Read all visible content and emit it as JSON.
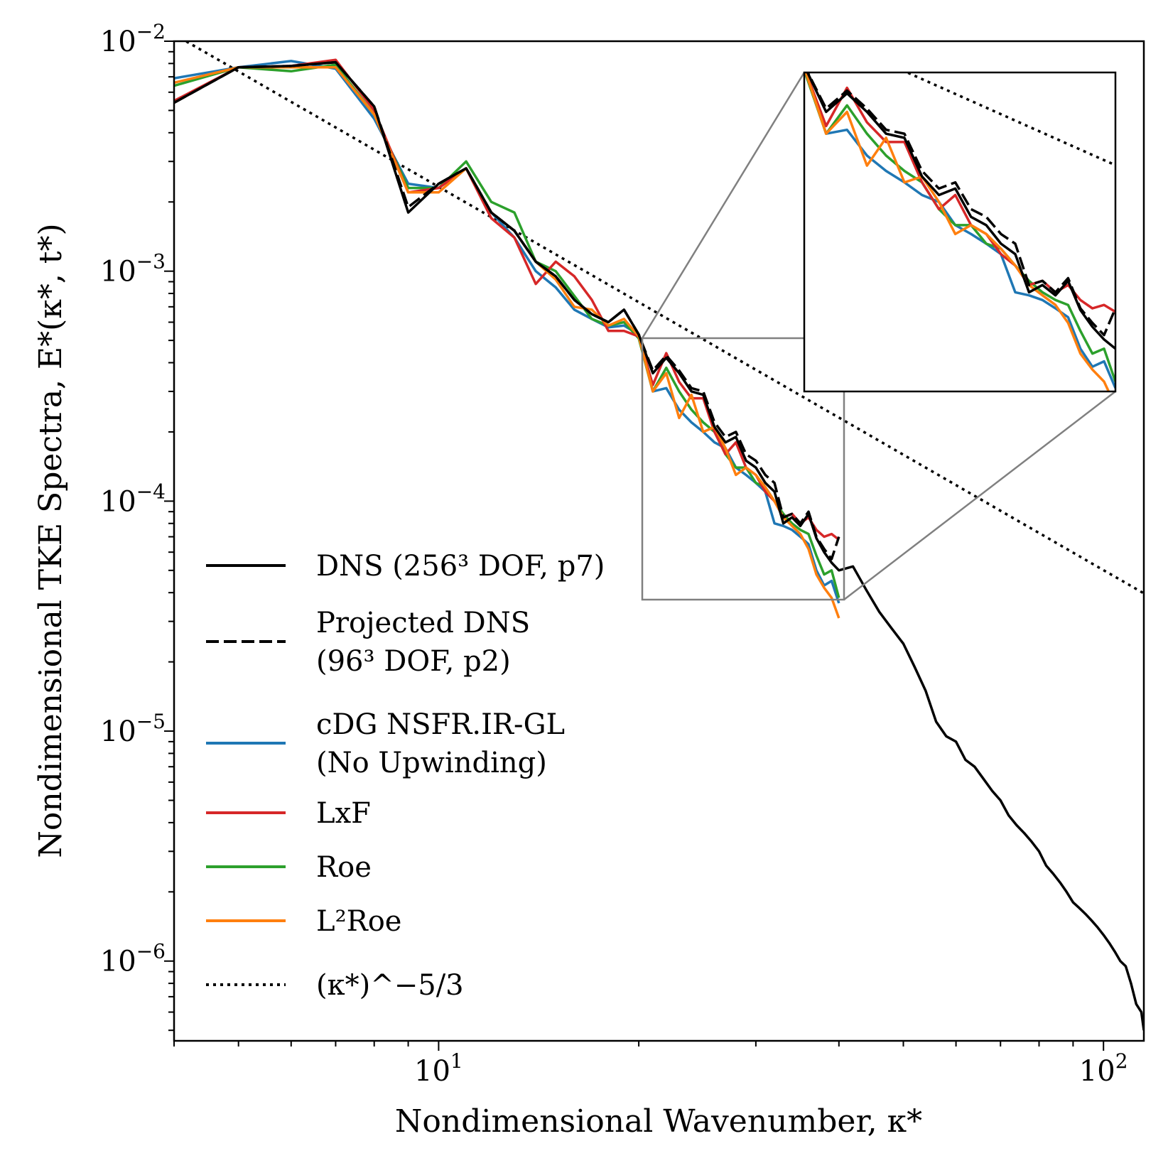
{
  "chart_data": {
    "type": "line",
    "xscale": "log",
    "yscale": "log",
    "xlim": [
      4.0,
      115.0
    ],
    "ylim": [
      4.5e-07,
      0.01
    ],
    "xlabel": "Nondimensional Wavenumber, κ*",
    "ylabel": "Nondimensional TKE Spectra, E*(κ*, t*)",
    "x_ticks": [
      {
        "value": 10,
        "base": "10",
        "exp": "1"
      },
      {
        "value": 100,
        "base": "10",
        "exp": "2"
      }
    ],
    "y_ticks": [
      {
        "value": 0.01,
        "base": "10",
        "exp": "−2"
      },
      {
        "value": 0.001,
        "base": "10",
        "exp": "−3"
      },
      {
        "value": 0.0001,
        "base": "10",
        "exp": "−4"
      },
      {
        "value": 1e-05,
        "base": "10",
        "exp": "−5"
      },
      {
        "value": 1e-06,
        "base": "10",
        "exp": "−6"
      }
    ],
    "legend": [
      {
        "key": "dns",
        "lines": [
          "DNS (256³ DOF, p7)"
        ]
      },
      {
        "key": "proj",
        "lines": [
          "Projected DNS",
          "(96³ DOF, p2)"
        ]
      },
      {
        "key": "nsfr",
        "lines": [
          "cDG NSFR.IR-GL",
          "(No Upwinding)"
        ]
      },
      {
        "key": "lxf",
        "lines": [
          "LxF"
        ]
      },
      {
        "key": "roe",
        "lines": [
          "Roe"
        ]
      },
      {
        "key": "l2roe",
        "lines": [
          "L²Roe"
        ]
      },
      {
        "key": "ref",
        "lines": [
          "(κ*)^−5/3"
        ]
      }
    ],
    "series": [
      {
        "name": "DNS (256³ DOF, p7)",
        "key": "dns",
        "color": "#000000",
        "dash": "solid",
        "x": [
          4,
          5,
          6,
          7,
          8,
          9,
          10,
          11,
          12,
          13,
          14,
          15,
          16,
          17,
          18,
          19,
          20,
          21,
          22,
          23,
          24,
          25,
          26,
          27,
          28,
          29,
          30,
          31,
          32,
          33,
          34,
          35,
          36,
          37,
          38,
          39,
          40,
          42,
          44,
          46,
          48,
          50,
          52,
          54,
          56,
          58,
          60,
          62,
          64,
          66,
          68,
          70,
          72,
          74,
          76,
          78,
          80,
          82,
          84,
          86,
          88,
          90,
          92,
          94,
          96,
          98,
          100,
          102,
          104,
          106,
          108,
          110,
          112,
          114,
          115
        ],
        "values": [
          0.0054,
          0.0077,
          0.0078,
          0.0081,
          0.0052,
          0.0018,
          0.0024,
          0.0028,
          0.0018,
          0.0015,
          0.0011,
          0.00095,
          0.00075,
          0.00065,
          0.0006,
          0.00068,
          0.00053,
          0.00036,
          0.00042,
          0.00036,
          0.0003,
          0.00029,
          0.00021,
          0.00018,
          0.00019,
          0.00015,
          0.00014,
          0.00012,
          0.00011,
          8e-05,
          8.5e-05,
          7.8e-05,
          8.8e-05,
          6.9e-05,
          6e-05,
          5.4e-05,
          5e-05,
          5.2e-05,
          4.1e-05,
          3.3e-05,
          2.8e-05,
          2.4e-05,
          1.9e-05,
          1.5e-05,
          1.1e-05,
          9.5e-06,
          9e-06,
          7.5e-06,
          7e-06,
          6.2e-06,
          5.5e-06,
          5e-06,
          4.3e-06,
          3.9e-06,
          3.6e-06,
          3.3e-06,
          3e-06,
          2.6e-06,
          2.4e-06,
          2.2e-06,
          2e-06,
          1.8e-06,
          1.7e-06,
          1.6e-06,
          1.5e-06,
          1.4e-06,
          1.3e-06,
          1.2e-06,
          1.1e-06,
          1e-06,
          9.5e-07,
          8e-07,
          6.5e-07,
          6e-07,
          5e-07
        ]
      },
      {
        "name": "Projected DNS (96³ DOF, p2)",
        "key": "proj",
        "color": "#000000",
        "dash": "dashed",
        "x": [
          4,
          5,
          6,
          7,
          8,
          9,
          10,
          11,
          12,
          13,
          14,
          15,
          16,
          17,
          18,
          19,
          20,
          21,
          22,
          23,
          24,
          25,
          26,
          27,
          28,
          29,
          30,
          31,
          32,
          33,
          34,
          35,
          36,
          37,
          38,
          39,
          40
        ],
        "values": [
          0.0054,
          0.0077,
          0.0078,
          0.0081,
          0.0052,
          0.0019,
          0.0024,
          0.0028,
          0.0018,
          0.0015,
          0.0011,
          0.00095,
          0.00075,
          0.00065,
          0.0006,
          0.00068,
          0.00053,
          0.00037,
          0.00043,
          0.00037,
          0.00031,
          0.0003,
          0.00022,
          0.00019,
          0.0002,
          0.00016,
          0.00015,
          0.00013,
          0.00012,
          8.5e-05,
          8.8e-05,
          8e-05,
          9e-05,
          7e-05,
          6.2e-05,
          5.6e-05,
          7e-05
        ]
      },
      {
        "name": "cDG NSFR.IR-GL (No Upwinding)",
        "key": "nsfr",
        "color": "#1f77b4",
        "dash": "solid",
        "x": [
          4,
          5,
          6,
          7,
          8,
          9,
          10,
          11,
          12,
          13,
          14,
          15,
          16,
          17,
          18,
          19,
          20,
          21,
          22,
          23,
          24,
          25,
          26,
          27,
          28,
          29,
          30,
          31,
          32,
          33,
          34,
          35,
          36,
          37,
          38,
          39,
          40
        ],
        "values": [
          0.0069,
          0.0077,
          0.0082,
          0.0076,
          0.0046,
          0.0024,
          0.0023,
          0.0028,
          0.0018,
          0.0014,
          0.001,
          0.00085,
          0.00068,
          0.00062,
          0.00057,
          0.00058,
          0.00053,
          0.0003,
          0.00031,
          0.00025,
          0.00022,
          0.0002,
          0.00018,
          0.00017,
          0.00014,
          0.00013,
          0.00012,
          0.00011,
          8e-05,
          7.8e-05,
          7.5e-05,
          7e-05,
          6.5e-05,
          5e-05,
          4.3e-05,
          4.5e-05,
          3.6e-05
        ]
      },
      {
        "name": "LxF",
        "key": "lxf",
        "color": "#d62728",
        "dash": "solid",
        "x": [
          4,
          5,
          6,
          7,
          8,
          9,
          10,
          11,
          12,
          13,
          14,
          15,
          16,
          17,
          18,
          19,
          20,
          21,
          22,
          23,
          24,
          25,
          26,
          27,
          28,
          29,
          30,
          31,
          32,
          33,
          34,
          35,
          36,
          37,
          38,
          39,
          40
        ],
        "values": [
          0.0055,
          0.0077,
          0.0078,
          0.0083,
          0.005,
          0.0022,
          0.0023,
          0.0028,
          0.0017,
          0.0014,
          0.00088,
          0.0011,
          0.00095,
          0.00075,
          0.00055,
          0.00055,
          0.00052,
          0.00032,
          0.00044,
          0.00033,
          0.00028,
          0.00028,
          0.0002,
          0.00016,
          0.00018,
          0.00014,
          0.00013,
          0.00011,
          0.0001,
          8.5e-05,
          8.8e-05,
          8e-05,
          8.5e-05,
          7.5e-05,
          7e-05,
          7.2e-05,
          6.8e-05
        ]
      },
      {
        "name": "Roe",
        "key": "roe",
        "color": "#2ca02c",
        "dash": "solid",
        "x": [
          4,
          5,
          6,
          7,
          8,
          9,
          10,
          11,
          12,
          13,
          14,
          15,
          16,
          17,
          18,
          19,
          20,
          21,
          22,
          23,
          24,
          25,
          26,
          27,
          28,
          29,
          30,
          31,
          32,
          33,
          34,
          35,
          36,
          37,
          38,
          39,
          40
        ],
        "values": [
          0.0064,
          0.0077,
          0.0074,
          0.0079,
          0.0048,
          0.0023,
          0.0023,
          0.003,
          0.002,
          0.0018,
          0.0011,
          0.001,
          0.00078,
          0.00062,
          0.00058,
          0.0006,
          0.00051,
          0.0003,
          0.00038,
          0.0003,
          0.00025,
          0.00022,
          0.0002,
          0.00016,
          0.00014,
          0.00014,
          0.00012,
          0.000115,
          0.0001,
          8.8e-05,
          8e-05,
          7.5e-05,
          7.2e-05,
          5.8e-05,
          4.8e-05,
          5e-05,
          3.8e-05
        ]
      },
      {
        "name": "L²Roe",
        "key": "l2roe",
        "color": "#ff7f0e",
        "dash": "solid",
        "x": [
          4,
          5,
          6,
          7,
          8,
          9,
          10,
          11,
          12,
          13,
          14,
          15,
          16,
          17,
          18,
          19,
          20,
          21,
          22,
          23,
          24,
          25,
          26,
          27,
          28,
          29,
          30,
          31,
          32,
          33,
          34,
          35,
          36,
          37,
          38,
          39,
          40
        ],
        "values": [
          0.0066,
          0.0077,
          0.0077,
          0.0077,
          0.0048,
          0.0022,
          0.0022,
          0.0028,
          0.0018,
          0.0015,
          0.0011,
          0.00092,
          0.0007,
          0.00068,
          0.00058,
          0.00062,
          0.00052,
          0.0003,
          0.00036,
          0.00023,
          0.00029,
          0.0002,
          0.00021,
          0.00017,
          0.00013,
          0.00014,
          0.00013,
          0.000115,
          0.0001,
          8.5e-05,
          7.8e-05,
          7.2e-05,
          6.2e-05,
          4.8e-05,
          4.2e-05,
          3.8e-05,
          3.1e-05
        ]
      }
    ],
    "reference_line": {
      "name": "(κ*)^−5/3",
      "key": "ref",
      "color": "#000000",
      "dash": "dotted",
      "coefficient": 0.108,
      "exponent": -1.6667
    },
    "inset": {
      "xlim": [
        20,
        40
      ],
      "ylim": [
        3.5e-05,
        0.0005
      ]
    }
  }
}
